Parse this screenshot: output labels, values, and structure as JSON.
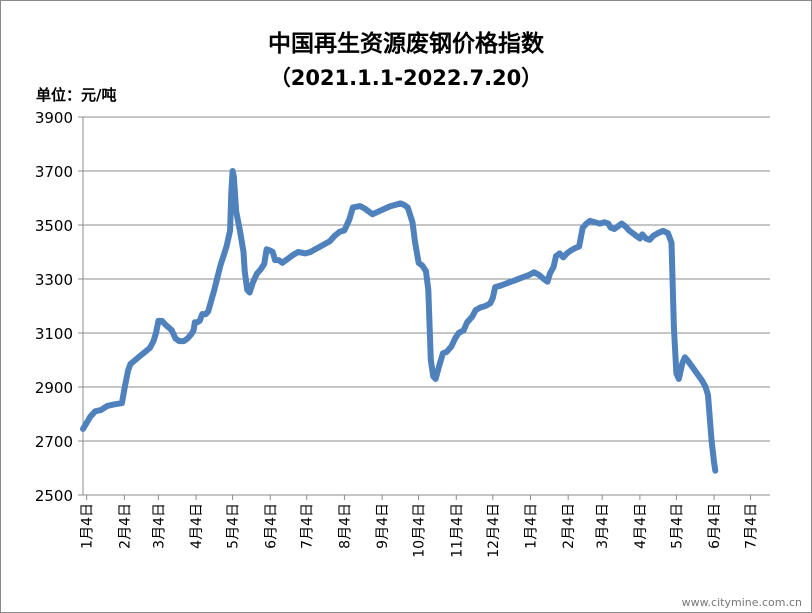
{
  "chart_data": {
    "type": "line",
    "title": "中国再生资源废钢价格指数",
    "subtitle": "（2021.1.1-2022.7.20）",
    "unit_label": "单位：元/吨",
    "xlabel": "",
    "ylabel": "",
    "ylim": [
      2500,
      3900
    ],
    "yticks": [
      2500,
      2700,
      2900,
      3100,
      3300,
      3500,
      3700,
      3900
    ],
    "grid": "horizontal",
    "legend": "none",
    "line_color": "#4f81bd",
    "x_ticks": [
      {
        "label": "1月4日",
        "x": 0
      },
      {
        "label": "2月4日",
        "x": 31
      },
      {
        "label": "3月4日",
        "x": 59
      },
      {
        "label": "4月4日",
        "x": 90
      },
      {
        "label": "5月4日",
        "x": 120
      },
      {
        "label": "6月4日",
        "x": 151
      },
      {
        "label": "7月4日",
        "x": 181
      },
      {
        "label": "8月4日",
        "x": 212
      },
      {
        "label": "9月4日",
        "x": 243
      },
      {
        "label": "10月4日",
        "x": 273
      },
      {
        "label": "11月4日",
        "x": 304
      },
      {
        "label": "12月4日",
        "x": 334
      },
      {
        "label": "1月4日",
        "x": 365
      },
      {
        "label": "2月4日",
        "x": 396
      },
      {
        "label": "3月4日",
        "x": 424
      },
      {
        "label": "4月4日",
        "x": 455
      },
      {
        "label": "5月4日",
        "x": 485
      },
      {
        "label": "6月4日",
        "x": 516
      },
      {
        "label": "7月4日",
        "x": 546
      }
    ],
    "x_range": [
      -3,
      562
    ],
    "series": [
      {
        "name": "",
        "points": [
          [
            -3,
            2745
          ],
          [
            3,
            2790
          ],
          [
            7,
            2810
          ],
          [
            12,
            2815
          ],
          [
            17,
            2830
          ],
          [
            22,
            2835
          ],
          [
            26,
            2838
          ],
          [
            29,
            2840
          ],
          [
            31,
            2890
          ],
          [
            34,
            2960
          ],
          [
            36,
            2985
          ],
          [
            40,
            3000
          ],
          [
            44,
            3015
          ],
          [
            48,
            3030
          ],
          [
            52,
            3045
          ],
          [
            55,
            3070
          ],
          [
            57,
            3100
          ],
          [
            59,
            3145
          ],
          [
            62,
            3145
          ],
          [
            65,
            3130
          ],
          [
            70,
            3110
          ],
          [
            73,
            3080
          ],
          [
            76,
            3070
          ],
          [
            80,
            3070
          ],
          [
            83,
            3080
          ],
          [
            86,
            3095
          ],
          [
            88,
            3110
          ],
          [
            89,
            3140
          ],
          [
            91,
            3140
          ],
          [
            93,
            3145
          ],
          [
            95,
            3170
          ],
          [
            98,
            3170
          ],
          [
            100,
            3180
          ],
          [
            105,
            3260
          ],
          [
            110,
            3350
          ],
          [
            115,
            3420
          ],
          [
            118,
            3480
          ],
          [
            119,
            3620
          ],
          [
            120,
            3700
          ],
          [
            121,
            3680
          ],
          [
            123,
            3550
          ],
          [
            126,
            3480
          ],
          [
            129,
            3400
          ],
          [
            130,
            3330
          ],
          [
            132,
            3260
          ],
          [
            134,
            3250
          ],
          [
            137,
            3290
          ],
          [
            140,
            3320
          ],
          [
            143,
            3335
          ],
          [
            146,
            3355
          ],
          [
            148,
            3410
          ],
          [
            151,
            3405
          ],
          [
            153,
            3400
          ],
          [
            155,
            3370
          ],
          [
            158,
            3370
          ],
          [
            161,
            3360
          ],
          [
            164,
            3370
          ],
          [
            167,
            3380
          ],
          [
            170,
            3390
          ],
          [
            174,
            3400
          ],
          [
            180,
            3395
          ],
          [
            184,
            3400
          ],
          [
            188,
            3410
          ],
          [
            192,
            3420
          ],
          [
            196,
            3430
          ],
          [
            200,
            3440
          ],
          [
            204,
            3460
          ],
          [
            208,
            3475
          ],
          [
            212,
            3480
          ],
          [
            216,
            3520
          ],
          [
            219,
            3565
          ],
          [
            225,
            3570
          ],
          [
            229,
            3560
          ],
          [
            232,
            3550
          ],
          [
            235,
            3540
          ],
          [
            240,
            3550
          ],
          [
            245,
            3560
          ],
          [
            250,
            3570
          ],
          [
            254,
            3575
          ],
          [
            258,
            3580
          ],
          [
            261,
            3575
          ],
          [
            264,
            3565
          ],
          [
            268,
            3510
          ],
          [
            270,
            3440
          ],
          [
            273,
            3360
          ],
          [
            276,
            3350
          ],
          [
            279,
            3330
          ],
          [
            281,
            3260
          ],
          [
            283,
            3000
          ],
          [
            285,
            2940
          ],
          [
            287,
            2930
          ],
          [
            290,
            2980
          ],
          [
            293,
            3025
          ],
          [
            296,
            3030
          ],
          [
            300,
            3050
          ],
          [
            303,
            3080
          ],
          [
            306,
            3100
          ],
          [
            310,
            3110
          ],
          [
            313,
            3140
          ],
          [
            317,
            3160
          ],
          [
            320,
            3185
          ],
          [
            324,
            3195
          ],
          [
            328,
            3200
          ],
          [
            332,
            3210
          ],
          [
            334,
            3230
          ],
          [
            336,
            3270
          ],
          [
            340,
            3275
          ],
          [
            346,
            3285
          ],
          [
            352,
            3295
          ],
          [
            358,
            3305
          ],
          [
            364,
            3315
          ],
          [
            368,
            3325
          ],
          [
            372,
            3315
          ],
          [
            376,
            3300
          ],
          [
            379,
            3290
          ],
          [
            381,
            3320
          ],
          [
            384,
            3345
          ],
          [
            386,
            3385
          ],
          [
            389,
            3395
          ],
          [
            392,
            3380
          ],
          [
            395,
            3395
          ],
          [
            398,
            3405
          ],
          [
            402,
            3415
          ],
          [
            405,
            3420
          ],
          [
            408,
            3490
          ],
          [
            411,
            3505
          ],
          [
            414,
            3515
          ],
          [
            418,
            3510
          ],
          [
            422,
            3505
          ],
          [
            426,
            3510
          ],
          [
            429,
            3505
          ],
          [
            431,
            3490
          ],
          [
            434,
            3485
          ],
          [
            437,
            3495
          ],
          [
            440,
            3505
          ],
          [
            443,
            3495
          ],
          [
            446,
            3480
          ],
          [
            449,
            3470
          ],
          [
            452,
            3460
          ],
          [
            455,
            3450
          ],
          [
            457,
            3465
          ],
          [
            460,
            3450
          ],
          [
            463,
            3445
          ],
          [
            466,
            3460
          ],
          [
            470,
            3470
          ],
          [
            474,
            3478
          ],
          [
            478,
            3470
          ],
          [
            481,
            3435
          ],
          [
            483,
            3120
          ],
          [
            485,
            2950
          ],
          [
            487,
            2930
          ],
          [
            490,
            2990
          ],
          [
            492,
            3010
          ],
          [
            494,
            3000
          ],
          [
            498,
            2975
          ],
          [
            502,
            2950
          ],
          [
            506,
            2925
          ],
          [
            509,
            2900
          ],
          [
            511,
            2870
          ],
          [
            514,
            2700
          ],
          [
            516,
            2620
          ],
          [
            517,
            2590
          ]
        ]
      }
    ]
  },
  "watermark": "www.citymine.com.cn"
}
